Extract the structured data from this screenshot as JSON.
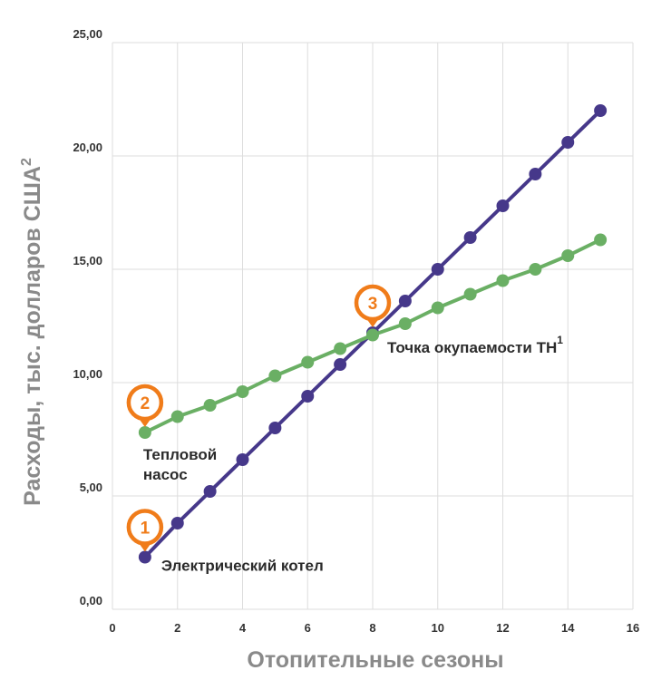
{
  "chart_data": {
    "type": "line",
    "title": "",
    "xlabel": "Отопительные сезоны",
    "ylabel": "Расходы, тыс. долларов США",
    "ylabel_sup": "2",
    "xlim": [
      0,
      16
    ],
    "ylim": [
      0,
      25
    ],
    "xticks": [
      0,
      2,
      4,
      6,
      8,
      10,
      12,
      14,
      16
    ],
    "xtick_labels": [
      "0",
      "2",
      "4",
      "6",
      "8",
      "10",
      "12",
      "14",
      "16"
    ],
    "yticks": [
      0,
      5,
      10,
      15,
      20,
      25
    ],
    "ytick_labels": [
      "0,00",
      "5,00",
      "10,00",
      "15,00",
      "20,00",
      "25,00"
    ],
    "grid": true,
    "series": [
      {
        "name": "Электрический котел",
        "color": "#46388a",
        "x": [
          1,
          2,
          3,
          4,
          5,
          6,
          7,
          8,
          9,
          10,
          11,
          12,
          13,
          14,
          15
        ],
        "values": [
          2.3,
          3.8,
          5.2,
          6.6,
          8.0,
          9.4,
          10.8,
          12.2,
          13.6,
          15.0,
          16.4,
          17.8,
          19.2,
          20.6,
          22.0
        ]
      },
      {
        "name": "Тепловой насос",
        "color": "#6aaf64",
        "x": [
          1,
          2,
          3,
          4,
          5,
          6,
          7,
          8,
          9,
          10,
          11,
          12,
          13,
          14,
          15
        ],
        "values": [
          7.8,
          8.5,
          9.0,
          9.6,
          10.3,
          10.9,
          11.5,
          12.1,
          12.6,
          13.3,
          13.9,
          14.5,
          15.0,
          15.6,
          16.3
        ]
      }
    ],
    "annotations": [
      {
        "marker": "1",
        "x": 1,
        "y": 2.3,
        "lines": [
          "Электрический котел"
        ],
        "sup": ""
      },
      {
        "marker": "2",
        "x": 1,
        "y": 7.8,
        "lines": [
          "Тепловой",
          "насос"
        ],
        "sup": ""
      },
      {
        "marker": "3",
        "x": 8,
        "y": 12.2,
        "lines": [
          "Точка окупаемости ТН"
        ],
        "sup": "1"
      }
    ],
    "colors": {
      "marker": "#f07c1a",
      "grid": "#dddddd"
    }
  }
}
